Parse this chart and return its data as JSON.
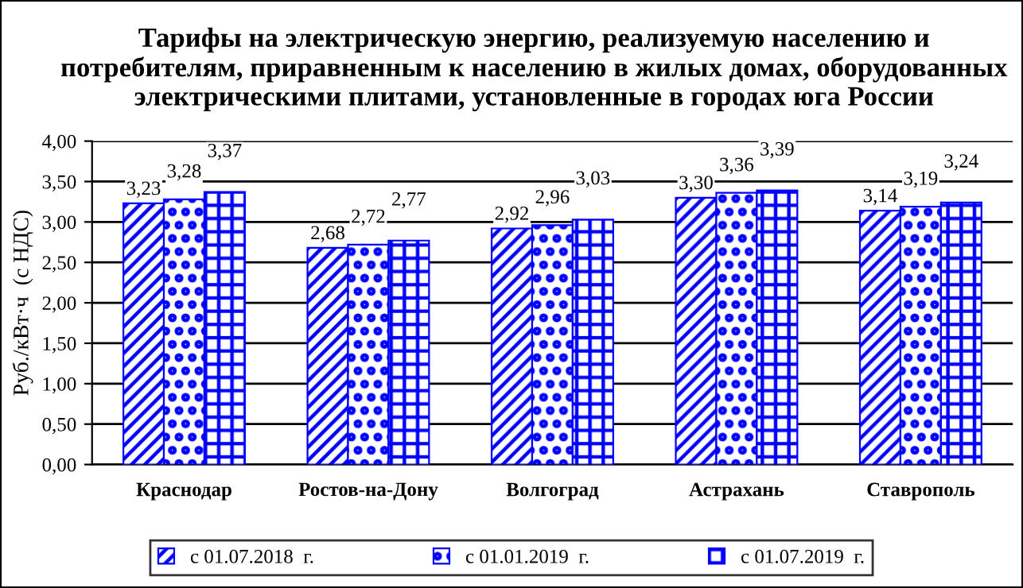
{
  "chart_data": {
    "type": "bar",
    "title": "Тарифы на электрическую энергию, реализуемую населению и потребителям, приравненным к населению в жилых домах, оборудованных электрическими плитами, установленные в городах юга России",
    "ylabel": "Руб./кВт·ч  (с НДС)",
    "categories": [
      "Краснодар",
      "Ростов-на-Дону",
      "Волгоград",
      "Астрахань",
      "Ставрополь"
    ],
    "series": [
      {
        "name": "с 01.07.2018  г.",
        "color": "#0000ff",
        "values": [
          3.23,
          2.68,
          2.92,
          3.3,
          3.14
        ],
        "value_labels": [
          "3,23",
          "2,68",
          "2,92",
          "3,30",
          "3,14"
        ]
      },
      {
        "name": "с 01.01.2019  г.",
        "color": "#0000ff",
        "values": [
          3.28,
          2.72,
          2.96,
          3.36,
          3.19
        ],
        "value_labels": [
          "3,28",
          "2,72",
          "2,96",
          "3,36",
          "3,19"
        ]
      },
      {
        "name": "с 01.07.2019  г.",
        "color": "#0000ff",
        "values": [
          3.37,
          2.77,
          3.03,
          3.39,
          3.24
        ],
        "value_labels": [
          "3,37",
          "2,77",
          "3,03",
          "3,39",
          "3,24"
        ]
      }
    ],
    "ylim": [
      0,
      4
    ],
    "yticks": [
      {
        "value": 0,
        "label": "0,00"
      },
      {
        "value": 0.5,
        "label": "0,50"
      },
      {
        "value": 1,
        "label": "1,00"
      },
      {
        "value": 1.5,
        "label": "1,50"
      },
      {
        "value": 2,
        "label": "2,00"
      },
      {
        "value": 2.5,
        "label": "2,50"
      },
      {
        "value": 3,
        "label": "3,00"
      },
      {
        "value": 3.5,
        "label": "3,50"
      },
      {
        "value": 4,
        "label": "4,00"
      }
    ],
    "grid": "y",
    "legend": "bottom"
  }
}
